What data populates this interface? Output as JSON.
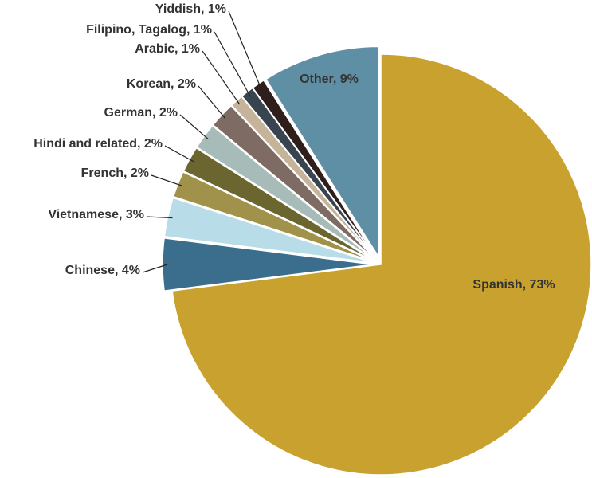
{
  "chart_data": {
    "type": "pie",
    "categories": [
      "Spanish, 73%",
      "Chinese, 4%",
      "Vietnamese, 3%",
      "French, 2%",
      "Hindi and related, 2%",
      "German, 2%",
      "Korean, 2%",
      "Arabic, 1%",
      "Filipino, Tagalog, 1%",
      "Yiddish, 1%",
      "Other, 9%"
    ],
    "values": [
      73,
      4,
      3,
      2,
      2,
      2,
      2,
      1,
      1,
      1,
      9
    ],
    "colors": [
      "#c9a12f",
      "#3a6e8c",
      "#b8dde8",
      "#a0924a",
      "#6b6630",
      "#a7bcb8",
      "#7e6b63",
      "#c6b49a",
      "#384550",
      "#2e1f1c",
      "#5e8fa4"
    ]
  }
}
